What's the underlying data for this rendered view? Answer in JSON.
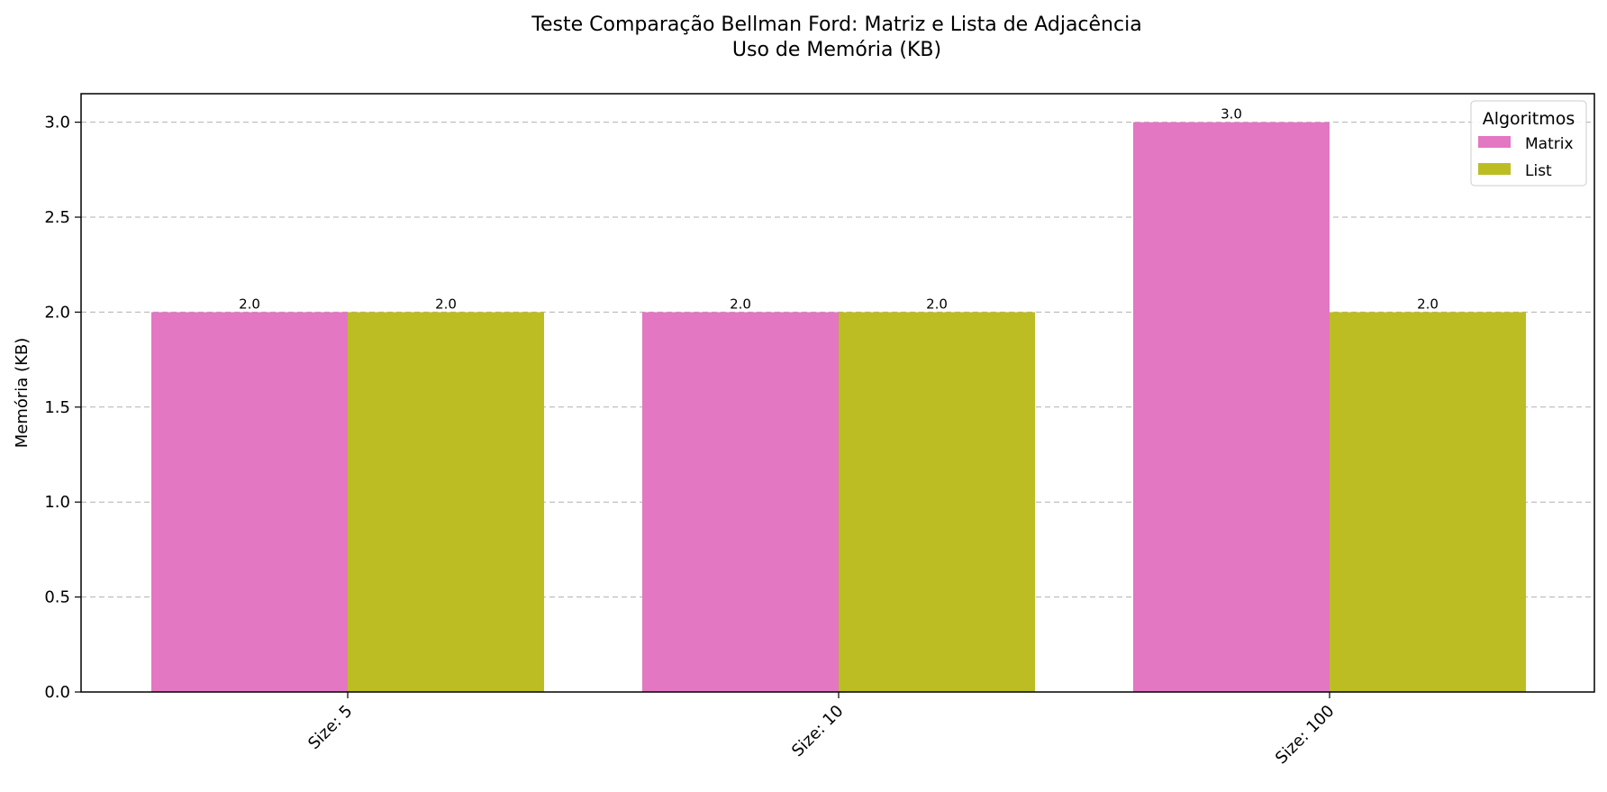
{
  "chart_data": {
    "type": "bar",
    "title_lines": [
      "Teste Comparação Bellman Ford: Matriz e Lista de Adjacência",
      "Uso de Memória (KB)"
    ],
    "xlabel": "",
    "ylabel": "Memória (KB)",
    "categories": [
      "Size: 5",
      "Size: 10",
      "Size: 100"
    ],
    "series": [
      {
        "name": "Matrix",
        "values": [
          2.0,
          2.0,
          3.0
        ],
        "color": "#e377c2"
      },
      {
        "name": "List",
        "values": [
          2.0,
          2.0,
          2.0
        ],
        "color": "#bcbd22"
      }
    ],
    "value_labels": [
      [
        "2.0",
        "2.0",
        "3.0"
      ],
      [
        "2.0",
        "2.0",
        "2.0"
      ]
    ],
    "ylim": [
      0,
      3.15
    ],
    "yticks": [
      0.0,
      0.5,
      1.0,
      1.5,
      2.0,
      2.5,
      3.0
    ],
    "ytick_labels": [
      "0.0",
      "0.5",
      "1.0",
      "1.5",
      "2.0",
      "2.5",
      "3.0"
    ],
    "grid": "horizontal dashed",
    "legend": {
      "title": "Algoritmos",
      "placement": "top-right"
    }
  }
}
